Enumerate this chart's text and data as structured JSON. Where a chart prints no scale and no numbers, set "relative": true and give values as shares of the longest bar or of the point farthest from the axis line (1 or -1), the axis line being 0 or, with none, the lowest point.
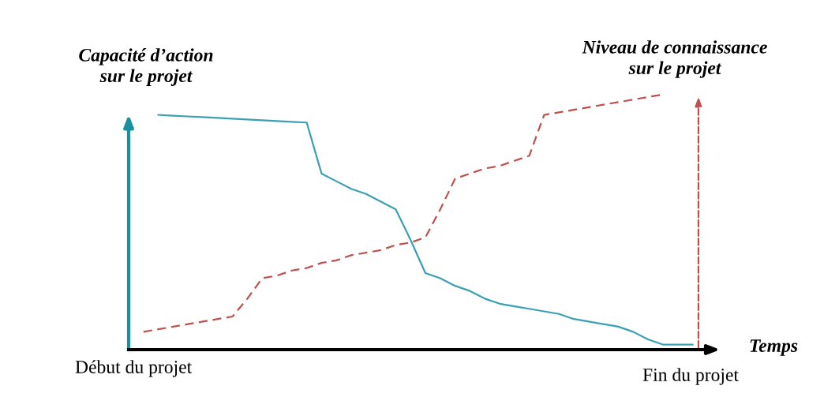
{
  "chart_data": {
    "type": "line",
    "relative": true,
    "ylabel": "Capacité d’action\nsur le projet",
    "y2label": "Niveau de connaissance\nsur le projet",
    "xlabel": "Temps",
    "annotations": [
      "Début du projet",
      "Fin du projet"
    ],
    "categories": [
      null,
      null,
      null,
      null,
      null,
      null,
      null,
      null,
      null,
      null,
      null,
      null,
      null,
      null,
      null,
      null,
      null,
      null,
      null,
      null,
      null,
      null,
      null,
      null,
      null,
      null,
      null,
      null,
      null,
      null,
      null,
      null,
      null,
      null,
      null,
      null,
      null,
      null,
      null,
      null,
      null
    ],
    "series": [
      {
        "color": "#3aa0b2",
        "line_style": "solid",
        "values": [
          null,
          null,
          0.92,
          0.917,
          0.914,
          0.911,
          0.908,
          0.905,
          0.902,
          0.899,
          0.896,
          0.893,
          0.89,
          0.69,
          0.66,
          0.63,
          0.61,
          0.58,
          0.55,
          0.43,
          0.3,
          0.28,
          0.25,
          0.23,
          0.2,
          0.18,
          0.17,
          0.16,
          0.15,
          0.14,
          0.12,
          0.11,
          0.1,
          0.09,
          0.07,
          0.04,
          0.02,
          0.02,
          0.02,
          null,
          null
        ]
      },
      {
        "color": "#c0504d",
        "line_style": "dashed",
        "values": [
          null,
          0.07,
          0.08,
          0.09,
          0.1,
          0.11,
          0.12,
          0.13,
          0.2,
          0.28,
          0.29,
          0.31,
          0.32,
          0.34,
          0.35,
          0.37,
          0.38,
          0.39,
          0.41,
          0.42,
          0.44,
          0.55,
          0.67,
          0.69,
          0.71,
          0.72,
          0.74,
          0.76,
          0.92,
          0.93,
          0.94,
          0.95,
          0.96,
          0.97,
          0.98,
          0.99,
          1.0,
          null,
          null,
          null,
          null
        ]
      }
    ]
  }
}
